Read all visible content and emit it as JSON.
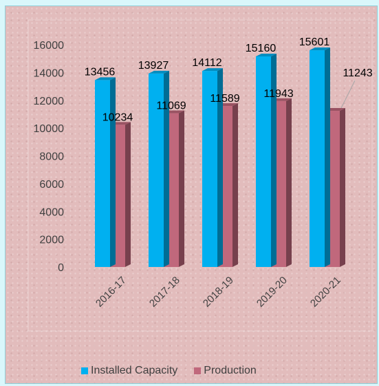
{
  "chart_data": {
    "type": "bar",
    "title": "",
    "xlabel": "",
    "ylabel": "",
    "ylim": [
      0,
      16000
    ],
    "yticks": [
      0,
      2000,
      4000,
      6000,
      8000,
      10000,
      12000,
      14000,
      16000
    ],
    "categories": [
      "2016-17",
      "2017-18",
      "2018-19",
      "2019-20",
      "2020-21"
    ],
    "series": [
      {
        "name": "Installed Capacity",
        "values": [
          13456,
          13927,
          14112,
          15160,
          15601
        ],
        "color": "#00b0f0"
      },
      {
        "name": "Production",
        "values": [
          10234,
          11069,
          11589,
          11943,
          11243
        ],
        "color": "#c0687c"
      }
    ],
    "grid": false,
    "legend": "bottom",
    "style": "3d-column"
  }
}
